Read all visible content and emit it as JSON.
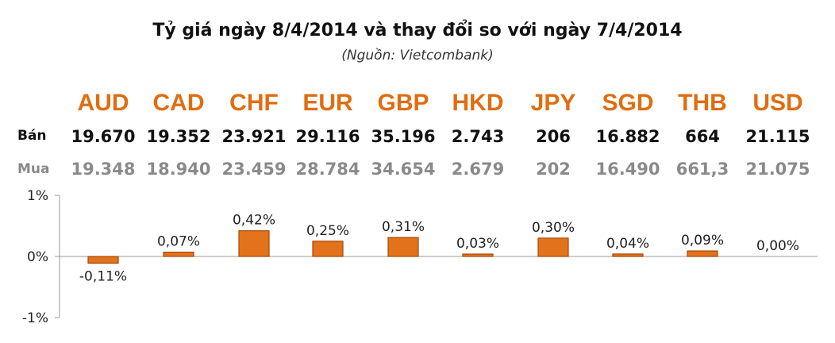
{
  "title": "Tỷ giá ngày 8/4/2014 và thay đổi so với ngày 7/4/2014",
  "subtitle": "(Nguồn: Vietcombank)",
  "rows": {
    "sell_label": "Bán",
    "buy_label": "Mua"
  },
  "currencies": [
    {
      "code": "AUD",
      "sell": "19.670",
      "buy": "19.348"
    },
    {
      "code": "CAD",
      "sell": "19.352",
      "buy": "18.940"
    },
    {
      "code": "CHF",
      "sell": "23.921",
      "buy": "23.459"
    },
    {
      "code": "EUR",
      "sell": "29.116",
      "buy": "28.784"
    },
    {
      "code": "GBP",
      "sell": "35.196",
      "buy": "34.654"
    },
    {
      "code": "HKD",
      "sell": "2.743",
      "buy": "2.679"
    },
    {
      "code": "JPY",
      "sell": "206",
      "buy": "202"
    },
    {
      "code": "SGD",
      "sell": "16.882",
      "buy": "16.490"
    },
    {
      "code": "THB",
      "sell": "664",
      "buy": "661,3"
    },
    {
      "code": "USD",
      "sell": "21.115",
      "buy": "21.075"
    }
  ],
  "colors": {
    "bar": "#e2731c",
    "bar_dark": "#a8480a",
    "currency": "#e06d10"
  },
  "chart_data": {
    "type": "bar",
    "categories": [
      "AUD",
      "CAD",
      "CHF",
      "EUR",
      "GBP",
      "HKD",
      "JPY",
      "SGD",
      "THB",
      "USD"
    ],
    "values": [
      -0.11,
      0.07,
      0.42,
      0.25,
      0.31,
      0.03,
      0.3,
      0.04,
      0.09,
      0.0
    ],
    "data_labels": [
      "-0,11%",
      "0,07%",
      "0,42%",
      "0,25%",
      "0,31%",
      "0,03%",
      "0,30%",
      "0,04%",
      "0,09%",
      "0,00%"
    ],
    "yticks": [
      {
        "value": 1,
        "label": "1%"
      },
      {
        "value": 0,
        "label": "0%"
      },
      {
        "value": -1,
        "label": "-1%"
      }
    ],
    "ylim": [
      -1,
      1
    ],
    "grid": false,
    "legend": "none"
  }
}
